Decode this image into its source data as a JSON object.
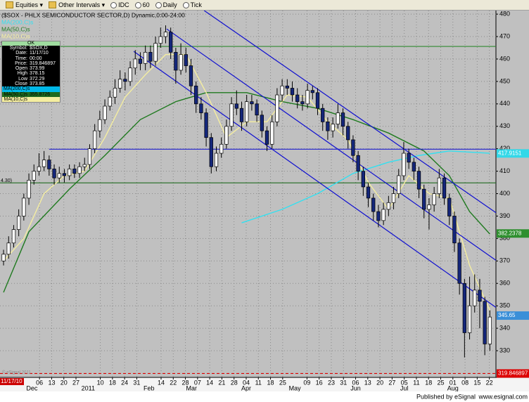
{
  "toolbar": {
    "items": [
      "Equities",
      "Other Intervals",
      "IDC",
      "60",
      "Daily",
      "Tick"
    ]
  },
  "chart_data": {
    "type": "candlestick",
    "title": "($SOX - PHLX SEMICONDUCTOR SECTOR,D) Dynamic,0:00-24:00",
    "open": [
      370,
      373,
      378,
      384,
      390,
      398,
      406,
      410,
      412,
      415,
      411,
      407,
      409,
      408,
      411,
      409,
      412,
      413,
      420,
      428,
      433,
      439,
      443,
      447,
      451,
      450,
      456,
      460,
      458,
      463,
      459,
      467,
      470,
      472,
      463,
      455,
      462,
      457,
      448,
      440,
      436,
      425,
      412,
      418,
      422,
      430,
      440,
      438,
      432,
      441,
      440,
      435,
      428,
      422,
      432,
      444,
      448,
      447,
      444,
      441,
      440,
      446,
      445,
      438,
      432,
      428,
      431,
      436,
      430,
      424,
      417,
      410,
      403,
      398,
      392,
      388,
      393,
      396,
      400,
      408,
      418,
      414,
      410,
      402,
      393,
      395,
      400,
      407,
      398,
      390,
      378,
      360,
      338,
      350,
      357,
      352,
      333
    ],
    "high": [
      375,
      381,
      386,
      393,
      400,
      409,
      413,
      418,
      419,
      417,
      413,
      412,
      411,
      413,
      413,
      414,
      416,
      422,
      431,
      437,
      442,
      446,
      451,
      455,
      454,
      459,
      464,
      463,
      466,
      466,
      470,
      474,
      475,
      474,
      465,
      467,
      465,
      460,
      450,
      443,
      438,
      427,
      421,
      425,
      433,
      443,
      446,
      441,
      444,
      444,
      442,
      437,
      430,
      435,
      447,
      451,
      451,
      450,
      447,
      444,
      449,
      448,
      447,
      440,
      434,
      434,
      440,
      438,
      432,
      426,
      419,
      412,
      405,
      400,
      395,
      396,
      399,
      403,
      411,
      423,
      420,
      416,
      412,
      404,
      398,
      403,
      411,
      409,
      400,
      392,
      380,
      362,
      363,
      364,
      362,
      354,
      348
    ],
    "low": [
      368,
      371,
      376,
      381,
      388,
      395,
      404,
      408,
      410,
      408,
      404,
      405,
      405,
      406,
      407,
      407,
      410,
      411,
      418,
      425,
      431,
      437,
      440,
      445,
      446,
      448,
      453,
      455,
      455,
      456,
      457,
      465,
      467,
      460,
      449,
      453,
      454,
      444,
      436,
      433,
      421,
      409,
      410,
      416,
      420,
      428,
      435,
      428,
      430,
      437,
      432,
      425,
      419,
      420,
      430,
      441,
      444,
      441,
      438,
      437,
      438,
      442,
      435,
      428,
      424,
      425,
      429,
      426,
      420,
      414,
      406,
      399,
      394,
      388,
      385,
      386,
      390,
      393,
      398,
      406,
      411,
      406,
      398,
      389,
      384,
      392,
      398,
      395,
      386,
      374,
      355,
      327,
      335,
      347,
      340,
      328,
      330
    ],
    "close": [
      373,
      378,
      384,
      390,
      398,
      406,
      410,
      412,
      415,
      411,
      407,
      409,
      408,
      411,
      409,
      412,
      413,
      420,
      428,
      433,
      439,
      443,
      447,
      451,
      450,
      456,
      460,
      458,
      463,
      459,
      467,
      470,
      472,
      463,
      455,
      462,
      457,
      448,
      440,
      436,
      425,
      412,
      418,
      422,
      430,
      440,
      438,
      432,
      441,
      440,
      435,
      428,
      422,
      432,
      444,
      448,
      447,
      444,
      441,
      440,
      446,
      445,
      438,
      432,
      428,
      431,
      436,
      430,
      424,
      417,
      410,
      403,
      398,
      392,
      388,
      393,
      396,
      400,
      408,
      418,
      414,
      410,
      402,
      393,
      395,
      400,
      407,
      398,
      390,
      378,
      360,
      338,
      350,
      357,
      352,
      333,
      345
    ],
    "up_color": "#ffffff",
    "down_color": "#14267a",
    "series": [
      {
        "name": "MA(200,C)s",
        "color": "#33e0f0",
        "x": [
          47,
          55,
          62,
          69,
          76,
          82,
          88,
          96
        ],
        "values": [
          387,
          393,
          400,
          409,
          414,
          417,
          419,
          418
        ]
      },
      {
        "name": "MA(50,C)s",
        "color": "#1f7a1f",
        "x": [
          0,
          5,
          13,
          20,
          27,
          34,
          40,
          48,
          55,
          62,
          69,
          76,
          83,
          88,
          92,
          96
        ],
        "values": [
          356,
          383,
          402,
          417,
          433,
          441,
          445,
          445,
          441,
          438,
          433,
          427,
          419,
          408,
          392,
          382
        ]
      },
      {
        "name": "MA(10,C)s",
        "color": "#f5eea0",
        "x": [
          0,
          4,
          8,
          12,
          16,
          20,
          24,
          28,
          32,
          36,
          40,
          44,
          48,
          52,
          56,
          60,
          64,
          68,
          72,
          76,
          80,
          84,
          88,
          92,
          96
        ],
        "values": [
          370,
          380,
          400,
          408,
          410,
          425,
          443,
          453,
          462,
          462,
          445,
          425,
          432,
          432,
          444,
          443,
          432,
          424,
          405,
          393,
          408,
          400,
          398,
          368,
          348
        ]
      }
    ],
    "trendlines": [
      {
        "color": "#1010d0",
        "x": [
          39.6,
          97.2
        ],
        "y": [
          481.6,
          391.5
        ]
      },
      {
        "color": "#1010d0",
        "x": [
          32.2,
          97.2
        ],
        "y": [
          473.4,
          370.3
        ]
      },
      {
        "color": "#1010d0",
        "x": [
          25.7,
          97.2
        ],
        "y": [
          463.4,
          349.3
        ]
      },
      {
        "color": "#2020d0",
        "x": [
          9,
          97.2
        ],
        "y": [
          419.8,
          419.8
        ]
      }
    ],
    "hlines": [
      {
        "value": 465.6,
        "color": "#2f8a2f"
      },
      {
        "value": 404.8,
        "color": "#1f6a1f"
      },
      {
        "value": 319.846897,
        "color": "#dd0000",
        "dashed": true,
        "tagged": true
      }
    ],
    "price_labels": [
      {
        "value": 417.9151,
        "color": "#33d8e8"
      },
      {
        "value": 382.2378,
        "color": "#2f8f2f"
      },
      {
        "value": 345.65,
        "color": "#3a8fd8"
      }
    ],
    "xlim": [
      -0.7,
      97.2
    ],
    "ylim": [
      318.1,
      481.6
    ],
    "yticks": [
      330,
      340,
      350,
      360,
      370,
      380,
      390,
      400,
      410,
      420,
      430,
      440,
      450,
      460,
      470,
      480
    ],
    "xticks": [
      {
        "value": 7.1,
        "label": "06"
      },
      {
        "value": 9.5,
        "label": "13"
      },
      {
        "value": 11.9,
        "label": "20"
      },
      {
        "value": 14.3,
        "label": "27"
      },
      {
        "value": 19.1,
        "label": "10"
      },
      {
        "value": 21.5,
        "label": "18"
      },
      {
        "value": 23.9,
        "label": "24"
      },
      {
        "value": 26.3,
        "label": "31"
      },
      {
        "value": 31.1,
        "label": "14"
      },
      {
        "value": 33.5,
        "label": "22"
      },
      {
        "value": 35.9,
        "label": "28"
      },
      {
        "value": 38.3,
        "label": "07"
      },
      {
        "value": 40.7,
        "label": "14"
      },
      {
        "value": 43.1,
        "label": "21"
      },
      {
        "value": 45.5,
        "label": "28"
      },
      {
        "value": 47.9,
        "label": "04"
      },
      {
        "value": 50.3,
        "label": "11"
      },
      {
        "value": 52.7,
        "label": "18"
      },
      {
        "value": 55.1,
        "label": "25"
      },
      {
        "value": 59.9,
        "label": "09"
      },
      {
        "value": 62.3,
        "label": "16"
      },
      {
        "value": 64.7,
        "label": "23"
      },
      {
        "value": 67.1,
        "label": "31"
      },
      {
        "value": 69.5,
        "label": "06"
      },
      {
        "value": 71.9,
        "label": "13"
      },
      {
        "value": 74.3,
        "label": "20"
      },
      {
        "value": 76.7,
        "label": "27"
      },
      {
        "value": 79.1,
        "label": "05"
      },
      {
        "value": 81.5,
        "label": "11"
      },
      {
        "value": 83.9,
        "label": "18"
      },
      {
        "value": 86.3,
        "label": "25"
      },
      {
        "value": 88.7,
        "label": "01"
      },
      {
        "value": 91.1,
        "label": "08"
      },
      {
        "value": 93.5,
        "label": "15"
      },
      {
        "value": 95.9,
        "label": "22"
      }
    ],
    "xmonths": [
      {
        "value": 5.6,
        "label": "Dec"
      },
      {
        "value": 16.7,
        "label": "2011"
      },
      {
        "value": 28.7,
        "label": "Feb"
      },
      {
        "value": 37.1,
        "label": "Mar"
      },
      {
        "value": 47.9,
        "label": "Apr"
      },
      {
        "value": 57.5,
        "label": "May"
      },
      {
        "value": 69.5,
        "label": "Jun"
      },
      {
        "value": 79.1,
        "label": "Jul"
      },
      {
        "value": 88.7,
        "label": "Aug"
      }
    ],
    "grid": true,
    "left_labels": [
      "5",
      "4.30)"
    ],
    "cursor_date": "11/17/10",
    "watermark": "© eSignal 2011"
  },
  "data_window": {
    "header": "OK",
    "rows": [
      {
        "label": "Symbol:",
        "value": "$SOX,D"
      },
      {
        "label": "Date:",
        "value": "11/17/10"
      },
      {
        "label": "Time:",
        "value": "00:00"
      },
      {
        "label": "Price:",
        "value": "319.846897"
      },
      {
        "label": "Open",
        "value": "373.99"
      },
      {
        "label": "High",
        "value": "378.15"
      },
      {
        "label": "Low",
        "value": "372.29"
      },
      {
        "label": "Close",
        "value": "373.85"
      },
      {
        "label": "MA(200,C)s",
        "bg": "#00b8e8"
      },
      {
        "label": "MA(50,C)s",
        "value": "355.8726",
        "bg": "#1f6a1f"
      },
      {
        "label": "MA(10,C)s",
        "bg": "#f5eea0"
      }
    ]
  },
  "footer": {
    "publisher": "Published by eSignal",
    "url": "www.esignal.com"
  }
}
